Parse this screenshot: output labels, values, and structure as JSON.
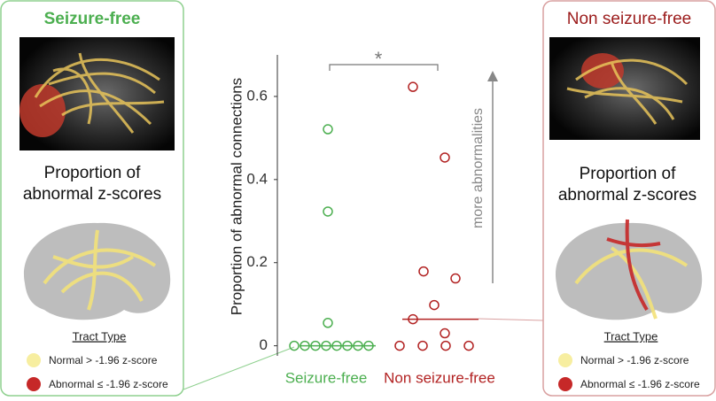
{
  "chart_data": {
    "type": "strip",
    "y_label": "Proportion of abnormal connections",
    "categories": [
      "Seizure-free",
      "Non seizure-free"
    ],
    "colors": [
      "#4caf50",
      "#b22222"
    ],
    "values": [
      [
        0,
        0,
        0,
        0,
        0,
        0,
        0,
        0,
        0.055,
        0.323,
        0.521
      ],
      [
        0,
        0,
        0,
        0,
        0.03,
        0.064,
        0.098,
        0.162,
        0.179,
        0.453,
        0.623
      ]
    ],
    "medians": [
      0,
      0.064
    ],
    "ylim": [
      -0.02,
      0.7
    ],
    "yticks": [
      0,
      0.2,
      0.4,
      0.6
    ],
    "significance": "*",
    "arrow_label": "more abnormalities"
  },
  "panels": [
    {
      "title": "Seizure-free",
      "caption": [
        "Proportion of",
        "abnormal z-scores"
      ],
      "legend_title": "Tract Type",
      "legend": [
        "Normal > -1.96 z-score",
        "Abnormal ≤ -1.96 z-score"
      ]
    },
    {
      "title": "Non seizure-free",
      "caption": [
        "Proportion of",
        "abnormal z-scores"
      ],
      "legend_title": "Tract Type",
      "legend": [
        "Normal > -1.96 z-score",
        "Abnormal ≤ -1.96 z-score"
      ]
    }
  ]
}
